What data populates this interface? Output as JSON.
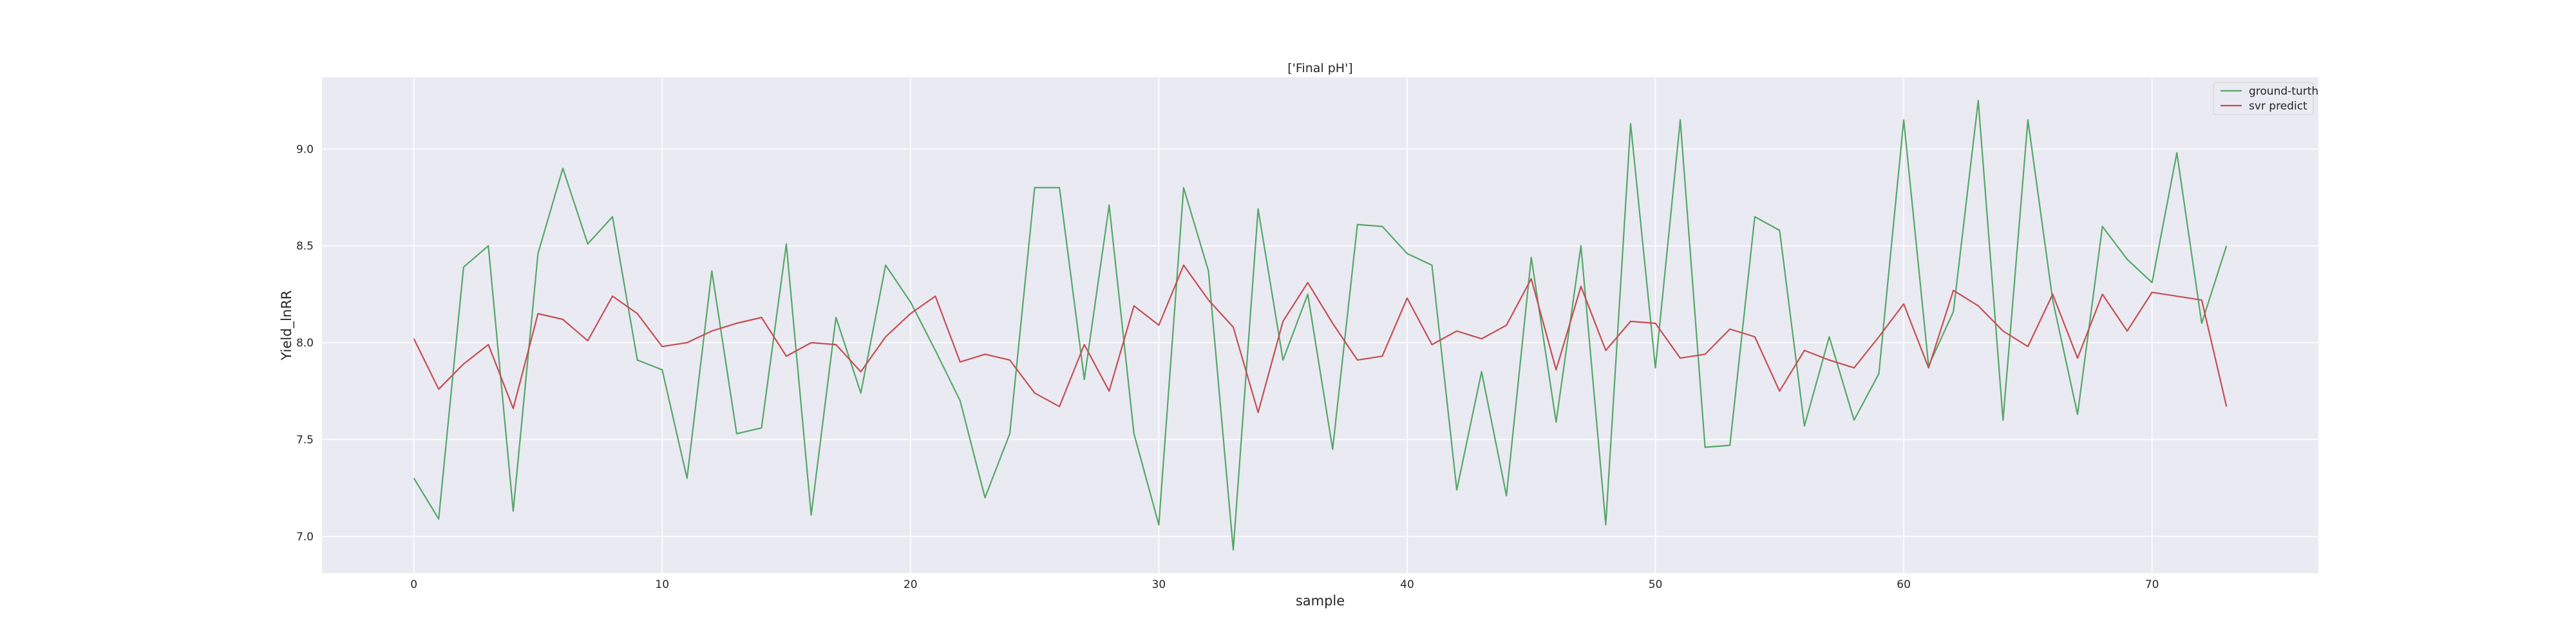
{
  "chart_data": {
    "type": "line",
    "title": "['Final pH']",
    "xlabel": "sample",
    "ylabel": "Yield_lnRR",
    "xlim": [
      -3.7,
      76.7
    ],
    "ylim": [
      6.81,
      9.37
    ],
    "x_ticks": [
      0,
      10,
      20,
      30,
      40,
      50,
      60,
      70
    ],
    "y_ticks": [
      7.0,
      7.5,
      8.0,
      8.5,
      9.0
    ],
    "grid": true,
    "legend_position": "top-right",
    "series": [
      {
        "name": "ground-turth",
        "color": "#55a868",
        "values": [
          7.3,
          7.09,
          8.39,
          8.5,
          7.13,
          8.46,
          8.9,
          8.51,
          8.65,
          7.91,
          7.86,
          7.3,
          8.37,
          7.53,
          7.56,
          8.51,
          7.11,
          8.13,
          7.74,
          8.4,
          8.21,
          7.96,
          7.7,
          7.2,
          7.53,
          8.8,
          8.8,
          7.81,
          8.71,
          7.53,
          7.06,
          8.8,
          8.37,
          6.93,
          8.69,
          7.91,
          8.25,
          7.45,
          8.61,
          8.6,
          8.46,
          8.4,
          7.24,
          7.85,
          7.21,
          8.44,
          7.59,
          8.5,
          7.06,
          9.13,
          7.87,
          9.15,
          7.46,
          7.47,
          8.65,
          8.58,
          7.57,
          8.03,
          7.6,
          7.84,
          9.15,
          7.88,
          8.16,
          9.25,
          7.6,
          9.15,
          8.22,
          7.63,
          8.6,
          8.43,
          8.31,
          8.98,
          8.1,
          8.5
        ]
      },
      {
        "name": "svr predict",
        "color": "#c44e52",
        "values": [
          8.02,
          7.76,
          7.89,
          7.99,
          7.66,
          8.15,
          8.12,
          8.01,
          8.24,
          8.15,
          7.98,
          8.0,
          8.06,
          8.1,
          8.13,
          7.93,
          8.0,
          7.99,
          7.85,
          8.03,
          8.15,
          8.24,
          7.9,
          7.94,
          7.91,
          7.74,
          7.67,
          7.99,
          7.75,
          8.19,
          8.09,
          8.4,
          8.22,
          8.08,
          7.64,
          8.11,
          8.31,
          8.1,
          7.91,
          7.93,
          8.23,
          7.99,
          8.06,
          8.02,
          8.09,
          8.33,
          7.86,
          8.29,
          7.96,
          8.11,
          8.1,
          7.92,
          7.94,
          8.07,
          8.03,
          7.75,
          7.96,
          7.91,
          7.87,
          8.03,
          8.2,
          7.87,
          8.27,
          8.19,
          8.06,
          7.98,
          8.25,
          7.92,
          8.25,
          8.06,
          8.26,
          8.24,
          8.22,
          7.67
        ]
      }
    ]
  }
}
